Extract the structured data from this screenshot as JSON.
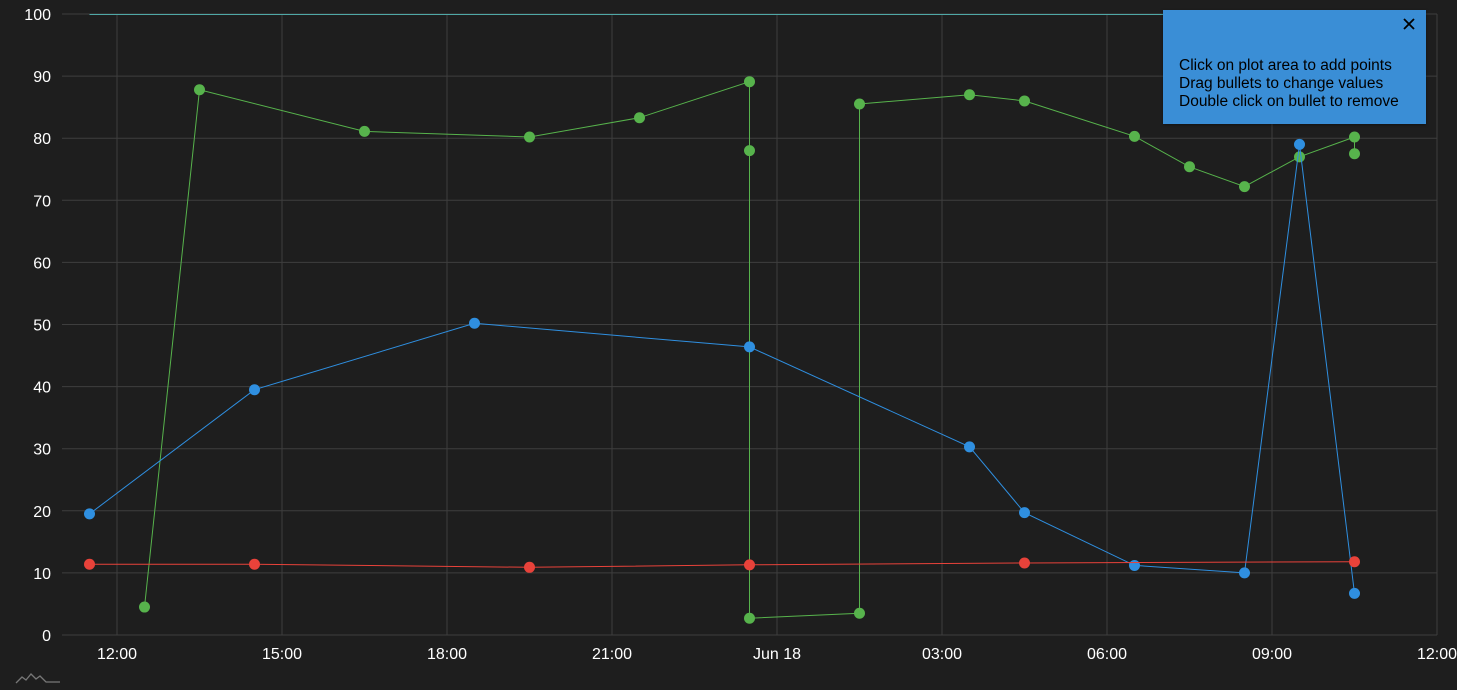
{
  "chart_data": {
    "type": "line",
    "title": "",
    "xlabel": "",
    "ylabel": "",
    "x_axis": {
      "type": "time",
      "range": [
        "2024-06-17T11:00",
        "2024-06-18T12:00"
      ],
      "ticks": [
        {
          "t": "2024-06-17T12:00",
          "label": "12:00"
        },
        {
          "t": "2024-06-17T15:00",
          "label": "15:00"
        },
        {
          "t": "2024-06-17T18:00",
          "label": "18:00"
        },
        {
          "t": "2024-06-17T21:00",
          "label": "21:00"
        },
        {
          "t": "2024-06-18T00:00",
          "label": "Jun 18"
        },
        {
          "t": "2024-06-18T03:00",
          "label": "03:00"
        },
        {
          "t": "2024-06-18T06:00",
          "label": "06:00"
        },
        {
          "t": "2024-06-18T09:00",
          "label": "09:00"
        },
        {
          "t": "2024-06-18T12:00",
          "label": "12:00"
        }
      ]
    },
    "y_axis": {
      "range": [
        0,
        100
      ],
      "ticks": [
        0,
        10,
        20,
        30,
        40,
        50,
        60,
        70,
        80,
        90,
        100
      ]
    },
    "grid": true,
    "top_line": {
      "color": "#4fa8a6",
      "x": [
        "2024-06-17T11:30",
        "2024-06-18T11:00"
      ],
      "y": 100
    },
    "series": [
      {
        "color": "#57b34c",
        "points": [
          {
            "x": "2024-06-17T12:30",
            "y": 4.5
          },
          {
            "x": "2024-06-17T13:30",
            "y": 87.8
          },
          {
            "x": "2024-06-17T16:30",
            "y": 81.1
          },
          {
            "x": "2024-06-17T19:30",
            "y": 80.2
          },
          {
            "x": "2024-06-17T21:30",
            "y": 83.3
          },
          {
            "x": "2024-06-17T23:30",
            "y": 89.1
          },
          {
            "x": "2024-06-17T23:30",
            "y": 78.0
          },
          {
            "x": "2024-06-17T23:30",
            "y": 2.7
          },
          {
            "x": "2024-06-18T01:30",
            "y": 3.5
          },
          {
            "x": "2024-06-18T01:30",
            "y": 85.5
          },
          {
            "x": "2024-06-18T03:30",
            "y": 87.0
          },
          {
            "x": "2024-06-18T04:30",
            "y": 86.0
          },
          {
            "x": "2024-06-18T06:30",
            "y": 80.3
          },
          {
            "x": "2024-06-18T07:30",
            "y": 75.4
          },
          {
            "x": "2024-06-18T08:30",
            "y": 72.2
          },
          {
            "x": "2024-06-18T09:30",
            "y": 77.0
          },
          {
            "x": "2024-06-18T10:30",
            "y": 80.2
          },
          {
            "x": "2024-06-18T10:30",
            "y": 77.5
          }
        ]
      },
      {
        "color": "#2f8fe0",
        "points": [
          {
            "x": "2024-06-17T11:30",
            "y": 19.5
          },
          {
            "x": "2024-06-17T14:30",
            "y": 39.5
          },
          {
            "x": "2024-06-17T18:30",
            "y": 50.2
          },
          {
            "x": "2024-06-17T23:30",
            "y": 46.4
          },
          {
            "x": "2024-06-18T03:30",
            "y": 30.3
          },
          {
            "x": "2024-06-18T04:30",
            "y": 19.7
          },
          {
            "x": "2024-06-18T06:30",
            "y": 11.2
          },
          {
            "x": "2024-06-18T08:30",
            "y": 10.0
          },
          {
            "x": "2024-06-18T09:30",
            "y": 79.0
          },
          {
            "x": "2024-06-18T10:30",
            "y": 6.7
          }
        ]
      },
      {
        "color": "#e8423a",
        "points": [
          {
            "x": "2024-06-17T11:30",
            "y": 11.4
          },
          {
            "x": "2024-06-17T14:30",
            "y": 11.4
          },
          {
            "x": "2024-06-17T19:30",
            "y": 10.9
          },
          {
            "x": "2024-06-17T23:30",
            "y": 11.3
          },
          {
            "x": "2024-06-18T04:30",
            "y": 11.6
          },
          {
            "x": "2024-06-18T10:30",
            "y": 11.8
          }
        ]
      }
    ]
  },
  "tooltip": {
    "lines": [
      "Click on plot area to add points",
      "Drag bullets to change values",
      "Double click on bullet to remove"
    ],
    "close_icon": "close-icon",
    "background": "#3a8ed6"
  },
  "logo_icon": "amcharts-logo-icon"
}
